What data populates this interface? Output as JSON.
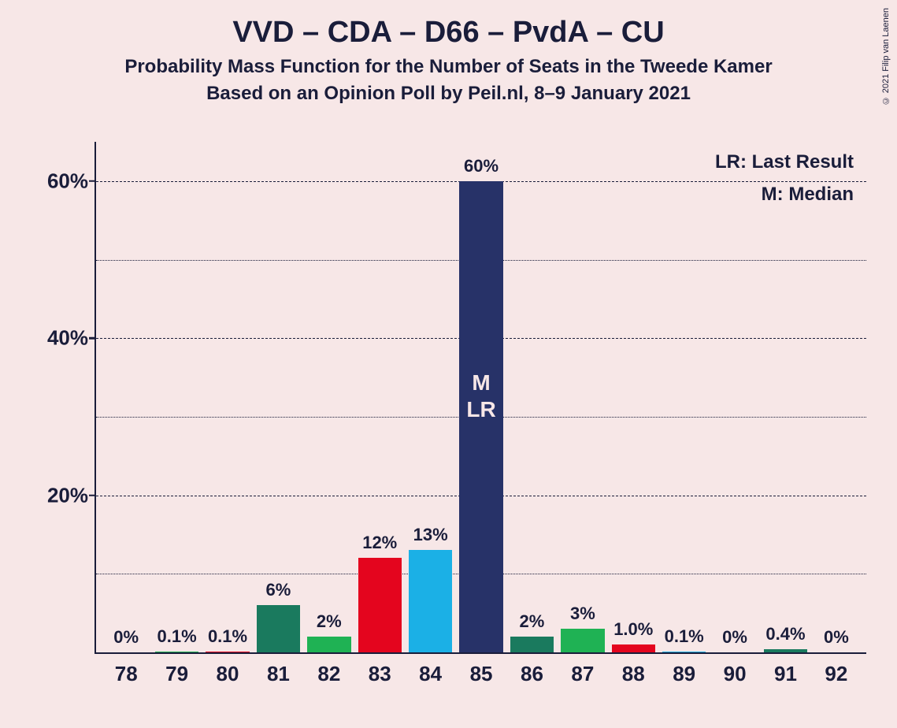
{
  "background_color": "#f7e7e7",
  "text_color": "#1a1d3a",
  "title": "VVD – CDA – D66 – PvdA – CU",
  "subtitle1": "Probability Mass Function for the Number of Seats in the Tweede Kamer",
  "subtitle2": "Based on an Opinion Poll by Peil.nl, 8–9 January 2021",
  "copyright": "© 2021 Filip van Laenen",
  "legend": {
    "lr": "LR: Last Result",
    "m": "M: Median"
  },
  "chart": {
    "type": "bar",
    "y": {
      "max": 65,
      "major_ticks": [
        20,
        40,
        60
      ],
      "minor_ticks": [
        10,
        30,
        50
      ],
      "label_suffix": "%"
    },
    "x_categories": [
      "78",
      "79",
      "80",
      "81",
      "82",
      "83",
      "84",
      "85",
      "86",
      "87",
      "88",
      "89",
      "90",
      "91",
      "92"
    ],
    "bars": [
      {
        "x": "78",
        "value": 0,
        "label": "0%",
        "color": "#1a7a5e"
      },
      {
        "x": "79",
        "value": 0.1,
        "label": "0.1%",
        "color": "#1fb254"
      },
      {
        "x": "80",
        "value": 0.1,
        "label": "0.1%",
        "color": "#e4051e"
      },
      {
        "x": "81",
        "value": 6,
        "label": "6%",
        "color": "#1a7a5e"
      },
      {
        "x": "82",
        "value": 2,
        "label": "2%",
        "color": "#1fb254"
      },
      {
        "x": "83",
        "value": 12,
        "label": "12%",
        "color": "#e4051e"
      },
      {
        "x": "84",
        "value": 13,
        "label": "13%",
        "color": "#1bb0e6"
      },
      {
        "x": "85",
        "value": 60,
        "label": "60%",
        "color": "#273268",
        "inside": "M\nLR"
      },
      {
        "x": "86",
        "value": 2,
        "label": "2%",
        "color": "#1a7a5e"
      },
      {
        "x": "87",
        "value": 3,
        "label": "3%",
        "color": "#1fb254"
      },
      {
        "x": "88",
        "value": 1.0,
        "label": "1.0%",
        "color": "#e4051e"
      },
      {
        "x": "89",
        "value": 0.1,
        "label": "0.1%",
        "color": "#1bb0e6"
      },
      {
        "x": "90",
        "value": 0,
        "label": "0%",
        "color": "#273268"
      },
      {
        "x": "91",
        "value": 0.4,
        "label": "0.4%",
        "color": "#1a7a5e"
      },
      {
        "x": "92",
        "value": 0,
        "label": "0%",
        "color": "#1fb254"
      }
    ]
  }
}
